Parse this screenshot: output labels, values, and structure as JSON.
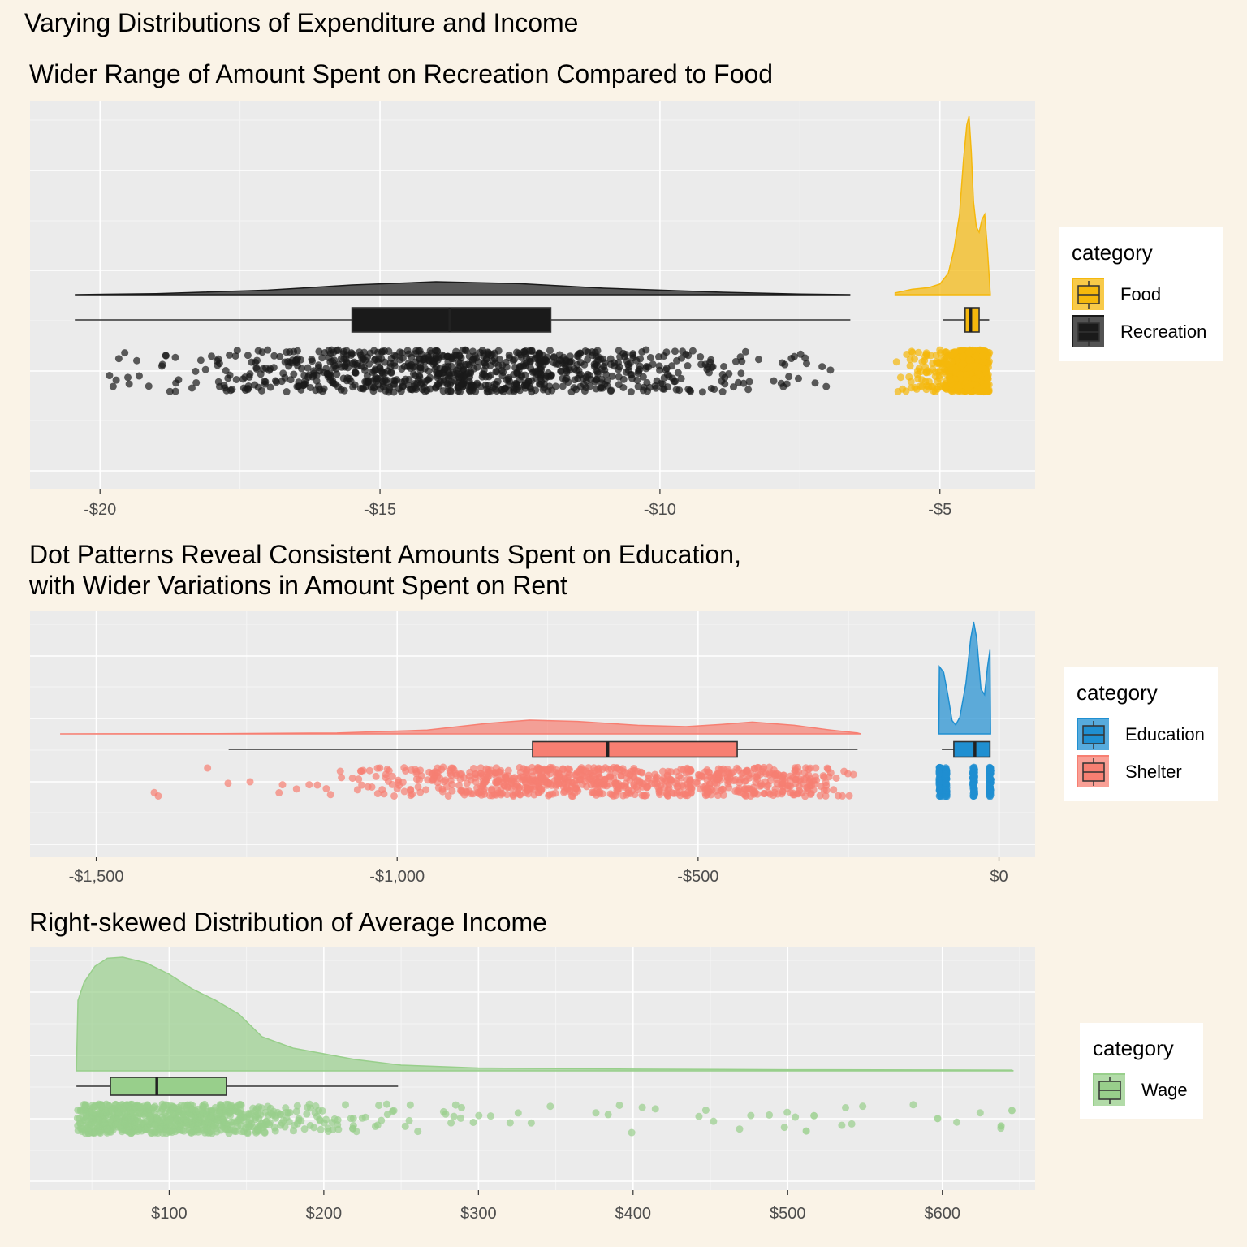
{
  "main_title": "Varying Distributions of Expenditure and Income",
  "chart_data": [
    {
      "type": "raincloud",
      "title": "Wider Range of Amount Spent on Recreation Compared to Food",
      "xlabel": "",
      "ylabel": "",
      "xlim": [
        -21.25,
        -3.3
      ],
      "x_ticks": [
        -20,
        -15,
        -10,
        -5
      ],
      "x_tick_labels": [
        "-$20",
        "-$15",
        "-$10",
        "-$5"
      ],
      "grid": true,
      "legend": {
        "title": "category",
        "position": "right"
      },
      "series": [
        {
          "name": "Food",
          "color": "#f5b80c",
          "min": -5.8,
          "max": -4.1,
          "q1": -4.55,
          "median": -4.45,
          "q3": -4.3,
          "whisker_low": -4.95,
          "whisker_high": -4.12,
          "density": [
            [
              -5.8,
              0.01
            ],
            [
              -5.5,
              0.03
            ],
            [
              -5.2,
              0.04
            ],
            [
              -5.0,
              0.06
            ],
            [
              -4.85,
              0.12
            ],
            [
              -4.75,
              0.25
            ],
            [
              -4.65,
              0.45
            ],
            [
              -4.58,
              0.75
            ],
            [
              -4.52,
              0.95
            ],
            [
              -4.48,
              1.0
            ],
            [
              -4.44,
              0.8
            ],
            [
              -4.4,
              0.52
            ],
            [
              -4.35,
              0.38
            ],
            [
              -4.3,
              0.35
            ],
            [
              -4.25,
              0.42
            ],
            [
              -4.2,
              0.45
            ],
            [
              -4.15,
              0.25
            ],
            [
              -4.1,
              0.0
            ]
          ]
        },
        {
          "name": "Recreation",
          "color": "#1a1a1a",
          "min": -20.45,
          "max": -6.6,
          "q1": -15.5,
          "median": -13.75,
          "q3": -11.95,
          "whisker_low": -20.45,
          "whisker_high": -6.6,
          "density": [
            [
              -20.45,
              0.0
            ],
            [
              -19,
              0.08
            ],
            [
              -17,
              0.35
            ],
            [
              -15.5,
              0.75
            ],
            [
              -14,
              1.0
            ],
            [
              -12.5,
              0.85
            ],
            [
              -11,
              0.5
            ],
            [
              -9,
              0.2
            ],
            [
              -7.5,
              0.05
            ],
            [
              -6.6,
              0.0
            ]
          ]
        }
      ]
    },
    {
      "type": "raincloud",
      "title": "Dot Patterns Reveal Consistent Amounts Spent on Education,\nwith Wider Variations in Amount Spent on Rent",
      "xlabel": "",
      "ylabel": "",
      "xlim": [
        -1610,
        60
      ],
      "x_ticks": [
        -1500,
        -1000,
        -500,
        0
      ],
      "x_tick_labels": [
        "-$1,500",
        "-$1,000",
        "-$500",
        "$0"
      ],
      "grid": true,
      "legend": {
        "title": "category",
        "position": "right"
      },
      "series": [
        {
          "name": "Education",
          "color": "#1f8fd1",
          "min": -100,
          "max": -15,
          "q1": -75,
          "median": -40,
          "q3": -15,
          "whisker_low": -95,
          "whisker_high": -15,
          "dot_values": [
            -98,
            -88,
            -42,
            -15
          ],
          "density": [
            [
              -100,
              0.0
            ],
            [
              -99,
              0.6
            ],
            [
              -92,
              0.55
            ],
            [
              -85,
              0.35
            ],
            [
              -78,
              0.12
            ],
            [
              -72,
              0.08
            ],
            [
              -65,
              0.15
            ],
            [
              -55,
              0.45
            ],
            [
              -47,
              0.85
            ],
            [
              -42,
              1.0
            ],
            [
              -37,
              0.85
            ],
            [
              -30,
              0.4
            ],
            [
              -24,
              0.35
            ],
            [
              -19,
              0.6
            ],
            [
              -15,
              0.75
            ],
            [
              -14,
              0.0
            ]
          ]
        },
        {
          "name": "Shelter",
          "color": "#f77f72",
          "min": -1560,
          "max": -230,
          "q1": -775,
          "median": -650,
          "q3": -435,
          "whisker_low": -1280,
          "whisker_high": -235,
          "density": [
            [
              -1560,
              0.0
            ],
            [
              -1300,
              0.01
            ],
            [
              -1100,
              0.05
            ],
            [
              -950,
              0.2
            ],
            [
              -850,
              0.55
            ],
            [
              -780,
              0.72
            ],
            [
              -700,
              0.65
            ],
            [
              -600,
              0.45
            ],
            [
              -520,
              0.38
            ],
            [
              -460,
              0.5
            ],
            [
              -410,
              0.62
            ],
            [
              -340,
              0.45
            ],
            [
              -280,
              0.2
            ],
            [
              -235,
              0.05
            ],
            [
              -230,
              0.0
            ]
          ]
        }
      ]
    },
    {
      "type": "raincloud",
      "title": "Right-skewed Distribution of Average Income",
      "xlabel": "",
      "ylabel": "",
      "xlim": [
        10,
        660
      ],
      "x_ticks": [
        100,
        200,
        300,
        400,
        500,
        600
      ],
      "x_tick_labels": [
        "$100",
        "$200",
        "$300",
        "$400",
        "$500",
        "$600"
      ],
      "grid": true,
      "legend": {
        "title": "category",
        "position": "right"
      },
      "series": [
        {
          "name": "Wage",
          "color": "#98cf8b",
          "min": 40,
          "max": 645,
          "q1": 62,
          "median": 92,
          "q3": 137,
          "whisker_low": 40,
          "whisker_high": 248,
          "density": [
            [
              40,
              0.0
            ],
            [
              41,
              0.62
            ],
            [
              45,
              0.78
            ],
            [
              52,
              0.92
            ],
            [
              60,
              0.99
            ],
            [
              70,
              1.0
            ],
            [
              85,
              0.95
            ],
            [
              100,
              0.85
            ],
            [
              115,
              0.72
            ],
            [
              130,
              0.62
            ],
            [
              145,
              0.5
            ],
            [
              160,
              0.3
            ],
            [
              180,
              0.2
            ],
            [
              200,
              0.15
            ],
            [
              220,
              0.1
            ],
            [
              250,
              0.05
            ],
            [
              300,
              0.025
            ],
            [
              400,
              0.015
            ],
            [
              500,
              0.01
            ],
            [
              600,
              0.008
            ],
            [
              645,
              0.006
            ],
            [
              646,
              0.0
            ]
          ],
          "outliers": [
            512,
            517,
            597,
            638,
            645
          ]
        }
      ]
    }
  ]
}
